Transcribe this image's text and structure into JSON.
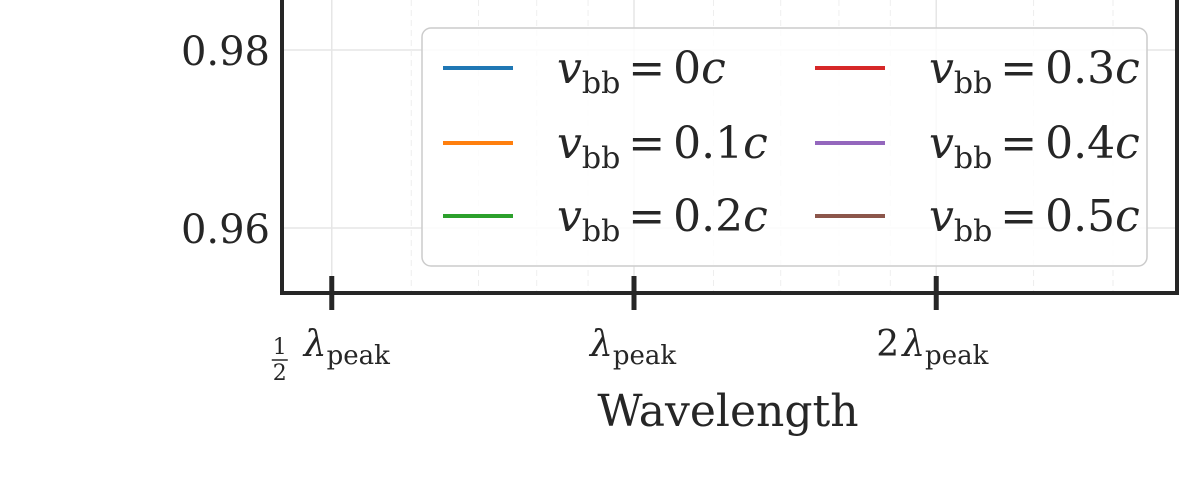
{
  "chart_data": {
    "type": "line",
    "title": "",
    "xlabel": "Wavelength",
    "ylabel": "",
    "x_scale": "log",
    "xticks": [
      {
        "value": 0.5,
        "frac": "1/2",
        "prefix": "",
        "symbol": "λ",
        "sub": "peak"
      },
      {
        "value": 1,
        "frac": "",
        "prefix": "",
        "symbol": "λ",
        "sub": "peak"
      },
      {
        "value": 2,
        "frac": "",
        "prefix": "2",
        "symbol": "λ",
        "sub": "peak"
      }
    ],
    "yticks": [
      "0.98",
      "0.96"
    ],
    "grid": true,
    "legend_position": "upper-right",
    "series": [
      {
        "name": "v_bb = 0c",
        "symbol": "v",
        "sub": "bb",
        "value": "0",
        "unit": "c",
        "color": "#1f77b4"
      },
      {
        "name": "v_bb = 0.1c",
        "symbol": "v",
        "sub": "bb",
        "value": "0.1",
        "unit": "c",
        "color": "#ff7f0e"
      },
      {
        "name": "v_bb = 0.2c",
        "symbol": "v",
        "sub": "bb",
        "value": "0.2",
        "unit": "c",
        "color": "#2ca02c"
      },
      {
        "name": "v_bb = 0.3c",
        "symbol": "v",
        "sub": "bb",
        "value": "0.3",
        "unit": "c",
        "color": "#d62728"
      },
      {
        "name": "v_bb = 0.4c",
        "symbol": "v",
        "sub": "bb",
        "value": "0.4",
        "unit": "c",
        "color": "#9467bd"
      },
      {
        "name": "v_bb = 0.5c",
        "symbol": "v",
        "sub": "bb",
        "value": "0.5",
        "unit": "c",
        "color": "#8c564b"
      }
    ]
  }
}
